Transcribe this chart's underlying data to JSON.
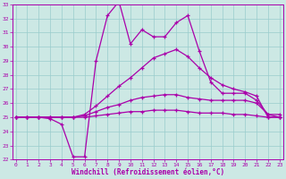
{
  "xlabel": "Windchill (Refroidissement éolien,°C)",
  "xlim": [
    0,
    23
  ],
  "ylim": [
    22,
    33
  ],
  "xticks": [
    0,
    1,
    2,
    3,
    4,
    5,
    6,
    7,
    8,
    9,
    10,
    11,
    12,
    13,
    14,
    15,
    16,
    17,
    18,
    19,
    20,
    21,
    22,
    23
  ],
  "yticks": [
    22,
    23,
    24,
    25,
    26,
    27,
    28,
    29,
    30,
    31,
    32,
    33
  ],
  "bg_color": "#cce8e4",
  "line_color": "#aa00aa",
  "grid_color": "#99cccc",
  "lines": [
    [
      25.0,
      25.0,
      25.0,
      24.9,
      24.5,
      22.2,
      22.2,
      29.0,
      32.2,
      33.2,
      30.2,
      31.2,
      30.7,
      30.7,
      31.7,
      32.2,
      29.7,
      27.5,
      26.7,
      26.7,
      26.7,
      26.2,
      25.2,
      25.2
    ],
    [
      25.0,
      25.0,
      25.0,
      25.0,
      25.0,
      25.0,
      25.2,
      25.8,
      26.5,
      27.2,
      27.8,
      28.5,
      29.2,
      29.5,
      29.8,
      29.3,
      28.5,
      27.8,
      27.3,
      27.0,
      26.8,
      26.5,
      25.0,
      25.0
    ],
    [
      25.0,
      25.0,
      25.0,
      25.0,
      25.0,
      25.0,
      25.1,
      25.4,
      25.7,
      25.9,
      26.2,
      26.4,
      26.5,
      26.6,
      26.6,
      26.4,
      26.3,
      26.2,
      26.2,
      26.2,
      26.2,
      26.0,
      25.2,
      25.0
    ],
    [
      25.0,
      25.0,
      25.0,
      25.0,
      25.0,
      25.0,
      25.0,
      25.1,
      25.2,
      25.3,
      25.4,
      25.4,
      25.5,
      25.5,
      25.5,
      25.4,
      25.3,
      25.3,
      25.3,
      25.2,
      25.2,
      25.1,
      25.0,
      25.0
    ]
  ]
}
